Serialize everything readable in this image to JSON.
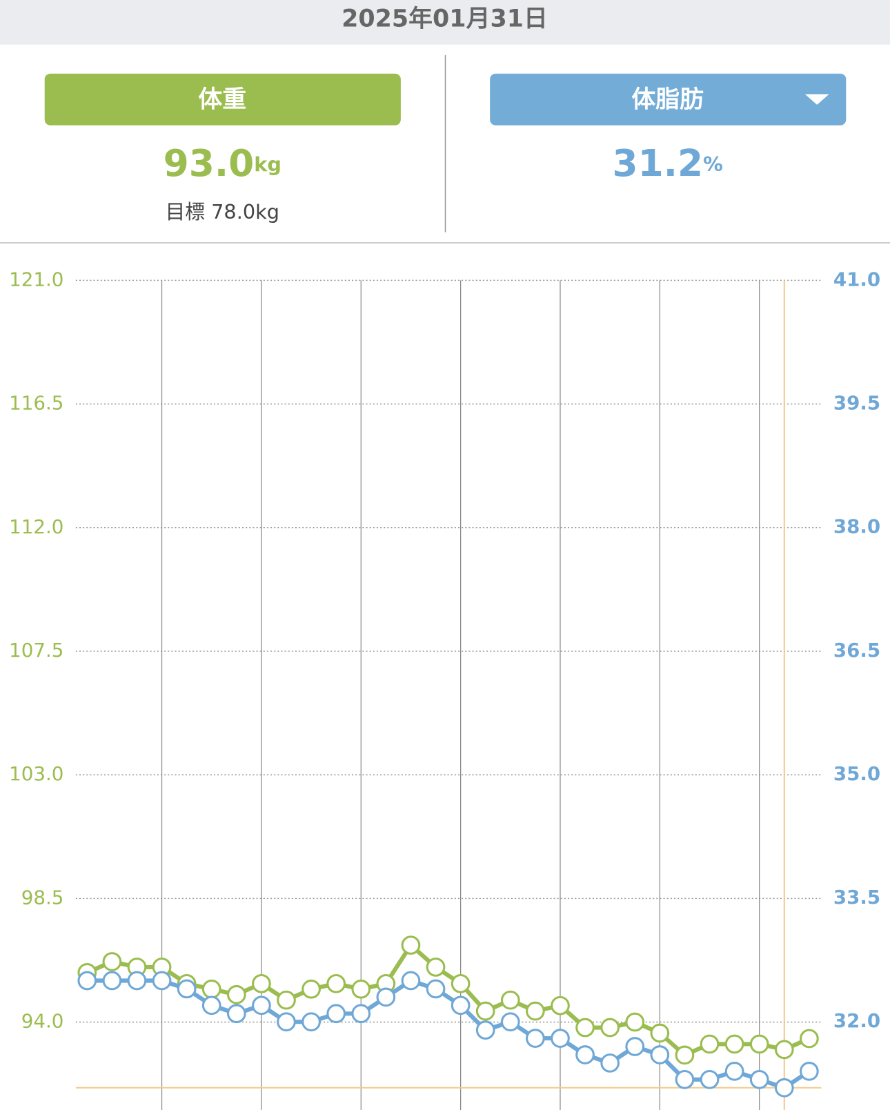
{
  "header": {
    "date": "2025年01月31日"
  },
  "weight": {
    "label": "体重",
    "value": "93.0",
    "unit": "kg",
    "goal": "目標 78.0kg"
  },
  "body_fat": {
    "label": "体脂肪",
    "value": "31.2",
    "unit": "%"
  },
  "chart_data": {
    "type": "line",
    "categories": [
      null,
      null,
      null,
      null,
      null,
      null,
      null,
      null,
      null,
      null,
      null,
      null,
      null,
      null,
      null,
      null,
      null,
      null,
      null,
      null,
      null,
      null,
      null,
      null,
      null,
      null,
      null,
      null,
      null,
      null
    ],
    "series": [
      {
        "color": "#9bbd4f",
        "values": [
          95.8,
          96.2,
          96.0,
          96.0,
          95.4,
          95.2,
          95.0,
          95.4,
          94.8,
          95.2,
          95.4,
          95.2,
          95.4,
          96.8,
          96.0,
          95.4,
          94.4,
          94.8,
          94.4,
          94.6,
          93.8,
          93.8,
          94.0,
          93.6,
          92.8,
          93.2,
          93.2,
          93.2,
          93.0,
          93.4
        ]
      },
      {
        "color": "#6fa8d6",
        "axis": "y2",
        "values": [
          32.5,
          32.5,
          32.5,
          32.5,
          32.4,
          32.2,
          32.1,
          32.2,
          32.0,
          32.0,
          32.1,
          32.1,
          32.3,
          32.5,
          32.4,
          32.2,
          31.9,
          32.0,
          31.8,
          31.8,
          31.6,
          31.5,
          31.7,
          31.6,
          31.3,
          31.3,
          31.4,
          31.3,
          31.2,
          31.4
        ]
      }
    ],
    "ylim": [
      90.8,
      121
    ],
    "yticks": [
      {
        "value": 121,
        "label": "121.0"
      },
      116.5,
      {
        "value": 112,
        "label": "112.0"
      },
      107.5,
      {
        "value": 103,
        "label": "103.0"
      },
      98.5,
      {
        "value": 94,
        "label": "94.0"
      }
    ],
    "y2lim": [
      30.93,
      41
    ],
    "y2ticks": [
      {
        "value": 41,
        "label": "41.0"
      },
      39.5,
      {
        "value": 38,
        "label": "38.0"
      },
      36.5,
      {
        "value": 35,
        "label": "35.0"
      },
      33.5,
      {
        "value": 32,
        "label": "32.0"
      }
    ],
    "grid": true
  }
}
